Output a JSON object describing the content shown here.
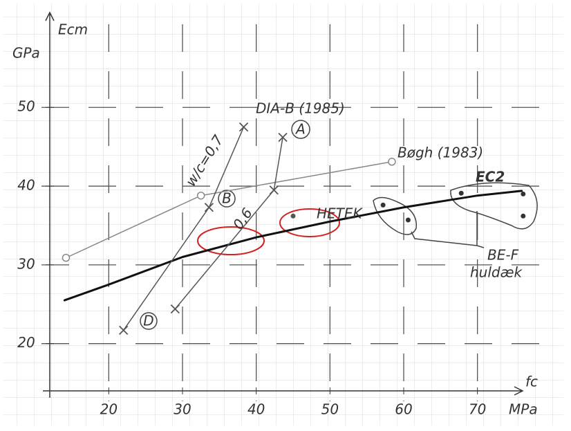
{
  "chart_data": {
    "type": "line",
    "ylabel": "Ecm",
    "ylabel_unit": "GPa",
    "xlabel": "fc",
    "xlabel_unit": "MPa",
    "xlim": [
      12,
      78
    ],
    "ylim": [
      14,
      61
    ],
    "xticks": [
      20,
      30,
      40,
      50,
      60,
      70
    ],
    "yticks": [
      20,
      30,
      40,
      50
    ],
    "grid": true,
    "series": [
      {
        "name": "EC2",
        "color": "#111111",
        "width": 3,
        "marker": "none",
        "line": true,
        "x": [
          14,
          20,
          30,
          40,
          50,
          60,
          70,
          76
        ],
        "values": [
          25.5,
          27.5,
          31,
          33.5,
          35.5,
          37.3,
          38.8,
          39.4
        ]
      },
      {
        "name": "Bøgh (1983)",
        "color": "#888888",
        "width": 1.5,
        "marker": "circle",
        "line": true,
        "x": [
          14.2,
          32.5,
          58.4
        ],
        "values": [
          30.9,
          38.8,
          43.1
        ]
      },
      {
        "color": "#555555",
        "width": 1.5,
        "marker": "cross",
        "line": true,
        "x": [
          38.3,
          33.6,
          22
        ],
        "values": [
          47.5,
          37.3,
          21.7
        ]
      },
      {
        "color": "#555555",
        "width": 1.5,
        "marker": "cross",
        "line": true,
        "x": [
          43.6,
          42.4,
          29
        ],
        "values": [
          46.2,
          39.5,
          24.4
        ]
      },
      {
        "name": "HETEK",
        "color": "#555555",
        "width": 1.5,
        "marker": "dot",
        "line": false,
        "x": [
          45
        ],
        "values": [
          36.2
        ]
      },
      {
        "name": "BE-F",
        "color": "#333333",
        "width": 1.5,
        "marker": "dot",
        "line": false,
        "x": [
          57.2,
          60.6,
          67.8,
          76.2,
          76.2
        ],
        "values": [
          37.6,
          35.7,
          39.1,
          39.0,
          36.2
        ]
      }
    ],
    "annotations": [
      "DIA-B (1985)",
      "A",
      "B",
      "D",
      "w/c=0,7",
      "0,6",
      "huldæk"
    ]
  }
}
